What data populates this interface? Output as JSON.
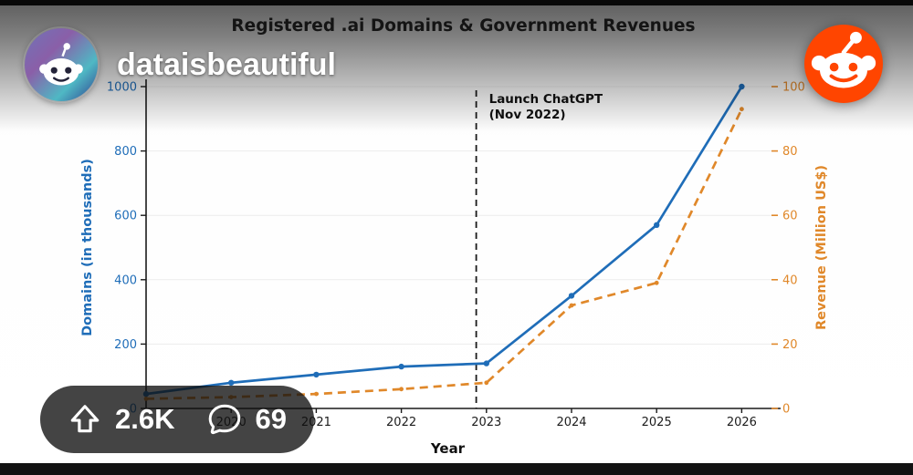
{
  "post": {
    "subreddit": "dataisbeautiful",
    "upvotes": "2.6K",
    "comments": "69"
  },
  "colors": {
    "domains_blue": "#1f6db8",
    "revenue_orange": "#e0882a",
    "reddit_orange": "#ff4500"
  },
  "chart_data": {
    "type": "line",
    "title": "Registered .ai Domains & Government Revenues",
    "xlabel": "Year",
    "ylabel_left": "Domains (in thousands)",
    "ylabel_right": "Revenue (Million US$)",
    "x": [
      2019,
      2020,
      2021,
      2022,
      2023,
      2024,
      2025,
      2026
    ],
    "xticks": [
      2020,
      2021,
      2022,
      2023,
      2024,
      2025,
      2026
    ],
    "series": [
      {
        "name": "Registered .ai domains",
        "axis": "left",
        "style": "solid",
        "color": "#1f6db8",
        "values": [
          45,
          80,
          105,
          130,
          140,
          350,
          570,
          1000
        ]
      },
      {
        "name": "Government revenues",
        "axis": "right",
        "style": "dashed",
        "color": "#e0882a",
        "values": [
          3,
          3.5,
          4.5,
          6,
          8,
          32,
          39,
          93
        ]
      }
    ],
    "ylim_left": [
      0,
      1000
    ],
    "ylim_right": [
      0,
      100
    ],
    "yticks_left": [
      0,
      200,
      400,
      600,
      800,
      1000
    ],
    "yticks_right": [
      0,
      20,
      40,
      60,
      80,
      100
    ],
    "grid": true,
    "legend": "none",
    "annotation": {
      "line1": "Launch ChatGPT",
      "line2": "(Nov 2022)",
      "x_year": 2022.88
    }
  }
}
